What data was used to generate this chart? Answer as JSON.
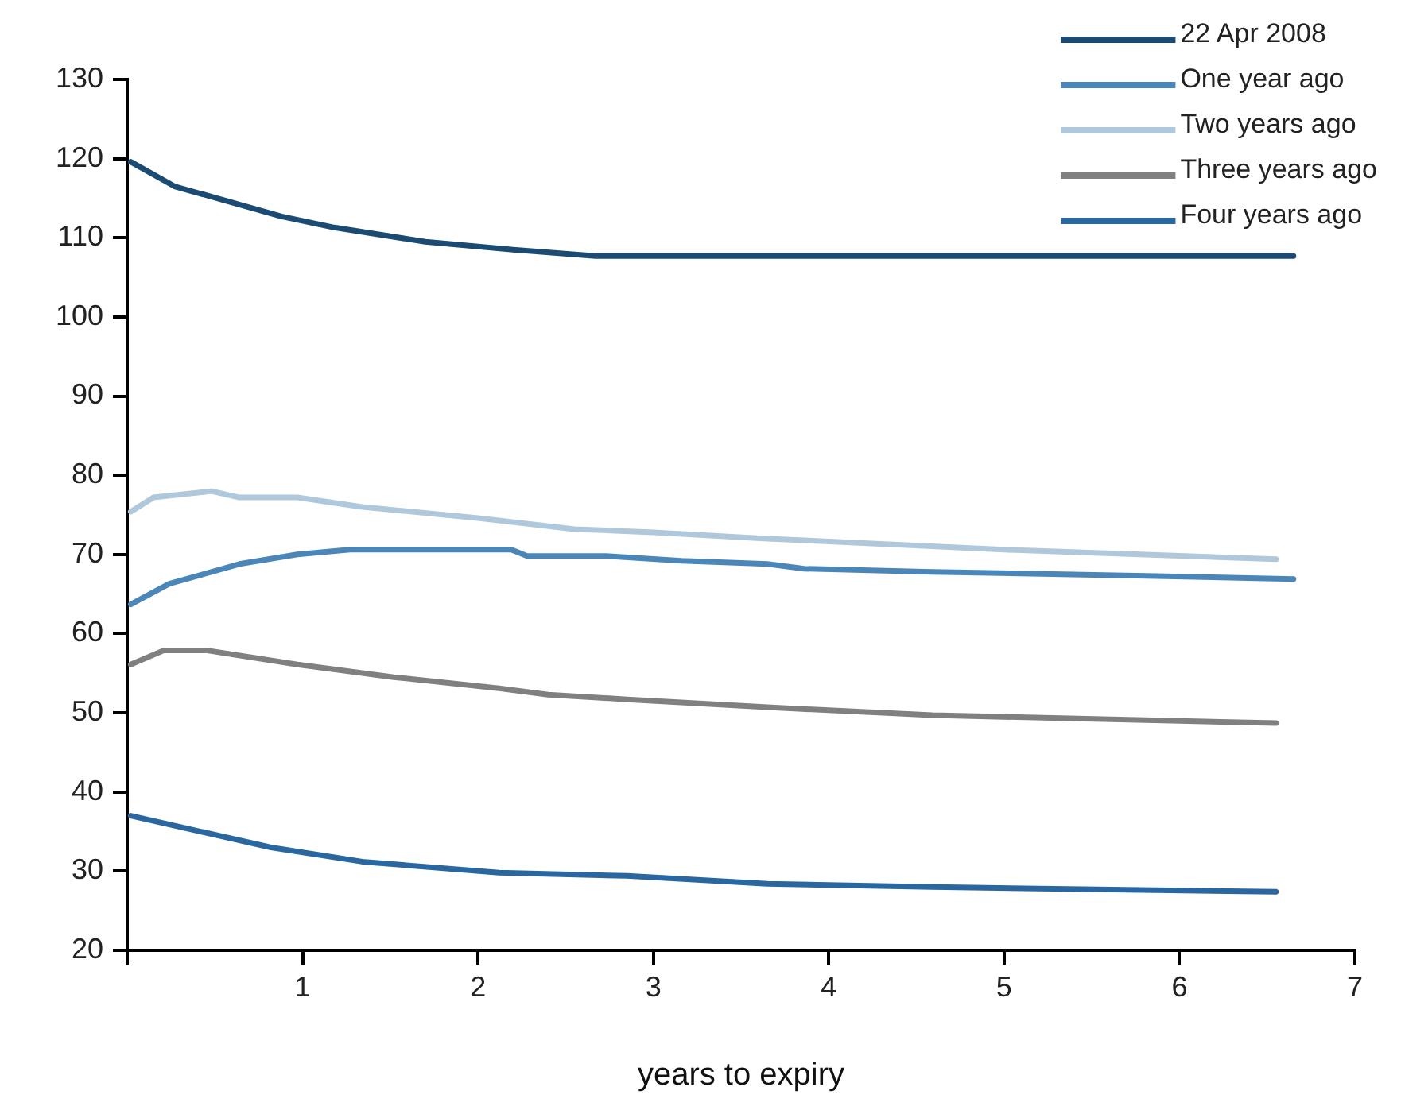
{
  "chart_data": {
    "type": "line",
    "xlabel": "years to expiry",
    "xlim": [
      0,
      7
    ],
    "xticks": [
      {
        "value": 0,
        "label": null
      },
      1,
      2,
      3,
      4,
      5,
      6,
      7
    ],
    "ylim": [
      20,
      130
    ],
    "yticks": [
      20,
      30,
      40,
      50,
      60,
      70,
      80,
      90,
      100,
      110,
      120,
      130
    ],
    "legend": "top right",
    "marker": "none",
    "line_style": "solid",
    "series": [
      {
        "name": "22 Apr 2008",
        "color": "#1b4a72",
        "x": [
          0.02,
          0.27,
          0.88,
          1.18,
          1.7,
          2.2,
          2.67,
          3.5,
          4.5,
          5.5,
          6.65
        ],
        "values": [
          119.6,
          116.5,
          112.7,
          111.3,
          109.5,
          108.5,
          107.7,
          107.7,
          107.7,
          107.7,
          107.7
        ]
      },
      {
        "name": "One year ago",
        "color": "#4a86b8",
        "x": [
          0.02,
          0.24,
          0.64,
          0.97,
          1.27,
          2.19,
          2.28,
          2.73,
          3.16,
          3.65,
          3.86,
          4.59,
          5.81,
          6.65
        ],
        "values": [
          63.7,
          66.3,
          68.8,
          70,
          70.6,
          70.6,
          69.8,
          69.8,
          69.2,
          68.8,
          68.2,
          67.8,
          67.3,
          66.9
        ]
      },
      {
        "name": "Two years ago",
        "color": "#b0c8dc",
        "x": [
          0.02,
          0.15,
          0.48,
          0.64,
          0.97,
          1.34,
          2,
          2.55,
          3,
          3.65,
          5,
          6.55
        ],
        "values": [
          75.4,
          77.2,
          78,
          77.2,
          77.2,
          76,
          74.6,
          73.2,
          72.8,
          72,
          70.6,
          69.4
        ]
      },
      {
        "name": "Three years ago",
        "color": "#808080",
        "x": [
          0.02,
          0.21,
          0.45,
          0.97,
          1.52,
          2.12,
          2.4,
          2.85,
          3.65,
          4.59,
          6.55
        ],
        "values": [
          56.1,
          57.9,
          57.9,
          56.1,
          54.5,
          53.1,
          52.3,
          51.7,
          50.7,
          49.7,
          48.7
        ]
      },
      {
        "name": "Four years ago",
        "color": "#2a66a0",
        "x": [
          0.02,
          0.42,
          0.82,
          1.34,
          2.12,
          2.85,
          3.65,
          4.59,
          6.55
        ],
        "values": [
          37,
          35,
          33,
          31.2,
          29.8,
          29.4,
          28.4,
          28,
          27.4
        ]
      }
    ]
  }
}
